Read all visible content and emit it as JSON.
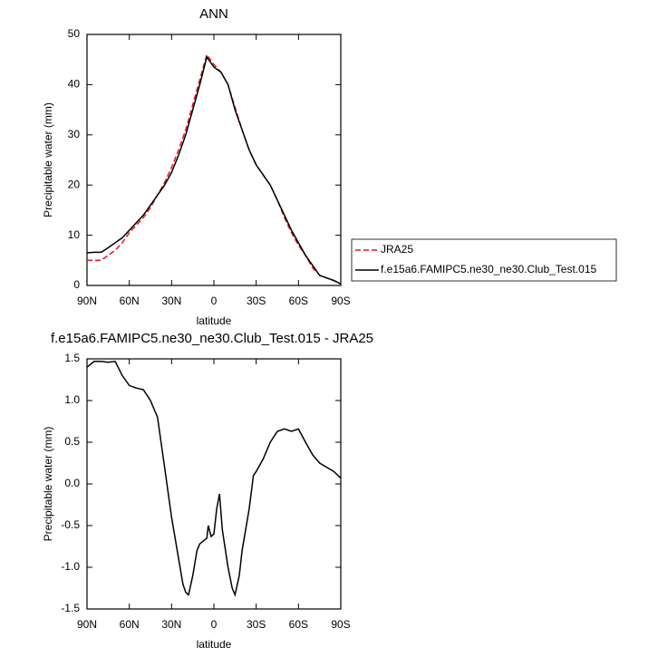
{
  "chart_data": [
    {
      "type": "line",
      "title": "ANN",
      "ylabel": "Precipitable water (mm)",
      "xlabel": "latitude",
      "xlim": [
        90,
        -90
      ],
      "ylim": [
        0,
        50
      ],
      "xticks": [
        {
          "value": 90,
          "label": "90N"
        },
        {
          "value": 60,
          "label": "60N"
        },
        {
          "value": 30,
          "label": "30N"
        },
        {
          "value": 0,
          "label": "0"
        },
        {
          "value": -30,
          "label": "30S"
        },
        {
          "value": -60,
          "label": "60S"
        },
        {
          "value": -90,
          "label": "90S"
        }
      ],
      "yticks": [
        0,
        10,
        20,
        30,
        40,
        50
      ],
      "legend": "right",
      "x": [
        90,
        85,
        80,
        75,
        70,
        65,
        60,
        55,
        50,
        45,
        40,
        35,
        30,
        25,
        20,
        15,
        10,
        5,
        0,
        -5,
        -10,
        -15,
        -20,
        -25,
        -30,
        -35,
        -40,
        -45,
        -50,
        -55,
        -60,
        -65,
        -70,
        -75,
        -80,
        -85,
        -90
      ],
      "series": [
        {
          "name": "JRA25",
          "color": "#e8141c",
          "dash": true,
          "values": [
            5,
            5,
            5,
            6,
            7,
            8.5,
            10.5,
            12,
            13.5,
            15.5,
            18,
            20.5,
            23.5,
            27,
            31,
            36,
            41,
            46,
            44,
            42.5,
            40,
            35.5,
            31,
            27,
            24,
            22,
            20,
            17,
            13.5,
            10.5,
            8,
            6,
            3.5,
            2,
            1.5,
            1,
            0.3
          ]
        },
        {
          "name": "f.e15a6.FAMIPC5.ne30_ne30.Club_Test.015",
          "color": "#000000",
          "dash": false,
          "values": [
            6.5,
            6.6,
            6.6,
            7.5,
            8.5,
            9.5,
            11,
            12.5,
            14,
            16,
            18,
            20,
            22.5,
            26,
            30,
            35,
            40,
            45.5,
            43.5,
            42.5,
            40,
            35,
            31,
            27,
            24,
            22,
            20,
            17,
            14,
            11,
            8.5,
            6,
            4,
            2,
            1.5,
            1,
            0.3
          ]
        }
      ]
    },
    {
      "type": "line",
      "title": "f.e15a6.FAMIPC5.ne30_ne30.Club_Test.015 - JRA25",
      "ylabel": "Precipitable water (mm)",
      "xlabel": "latitude",
      "xlim": [
        90,
        -90
      ],
      "ylim": [
        -1.5,
        1.5
      ],
      "xticks": [
        {
          "value": 90,
          "label": "90N"
        },
        {
          "value": 60,
          "label": "60N"
        },
        {
          "value": 30,
          "label": "30N"
        },
        {
          "value": 0,
          "label": "0"
        },
        {
          "value": -30,
          "label": "30S"
        },
        {
          "value": -60,
          "label": "60S"
        },
        {
          "value": -90,
          "label": "90S"
        }
      ],
      "yticks": [
        -1.5,
        {
          "value": -1,
          "label": "-1.0"
        },
        -0.5,
        {
          "value": 0,
          "label": "0.0"
        },
        0.5,
        {
          "value": 1,
          "label": "1.0"
        },
        1.5
      ],
      "x": [
        90,
        85,
        80,
        75,
        70,
        65,
        60,
        55,
        50,
        45,
        40,
        35,
        30,
        25,
        22,
        20,
        18,
        15,
        12,
        10,
        5,
        4,
        2,
        0,
        -2,
        -4,
        -6,
        -10,
        -13,
        -15,
        -18,
        -20,
        -25,
        -28,
        -30,
        -35,
        -40,
        -45,
        -50,
        -55,
        -60,
        -65,
        -70,
        -75,
        -80,
        -85,
        -90
      ],
      "series": [
        {
          "color": "#000000",
          "dash": false,
          "values": [
            1.4,
            1.47,
            1.47,
            1.46,
            1.47,
            1.3,
            1.18,
            1.15,
            1.13,
            1.0,
            0.8,
            0.2,
            -0.4,
            -0.9,
            -1.2,
            -1.3,
            -1.33,
            -1.1,
            -0.8,
            -0.72,
            -0.65,
            -0.5,
            -0.63,
            -0.6,
            -0.3,
            -0.12,
            -0.55,
            -1.0,
            -1.25,
            -1.33,
            -1.1,
            -0.8,
            -0.3,
            0.1,
            0.15,
            0.3,
            0.5,
            0.63,
            0.66,
            0.63,
            0.66,
            0.5,
            0.35,
            0.25,
            0.2,
            0.15,
            0.07
          ]
        }
      ]
    }
  ]
}
